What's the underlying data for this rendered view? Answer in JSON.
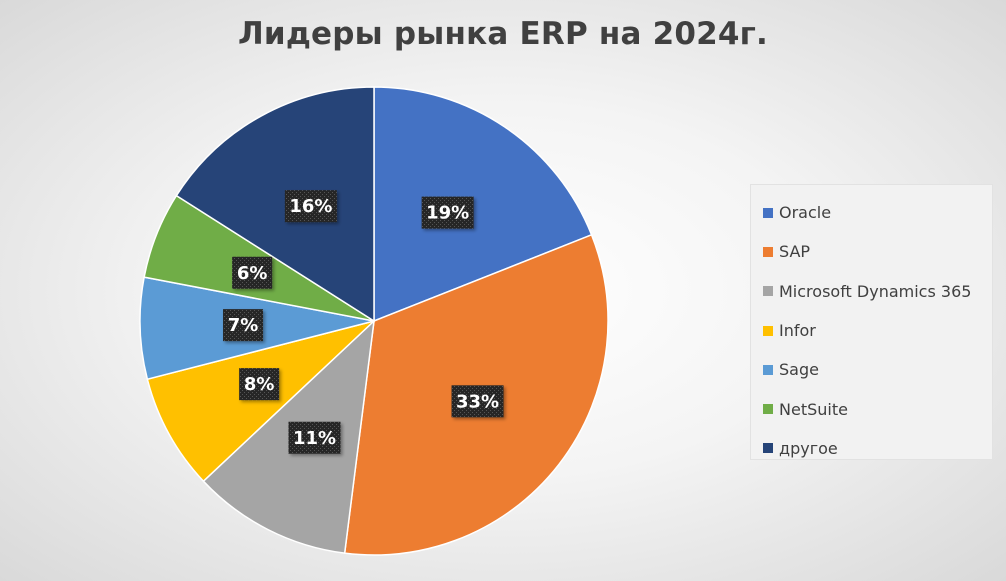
{
  "chart_data": {
    "type": "pie",
    "title": "Лидеры рынка ERP на 2024г.",
    "legend_position": "right",
    "start_angle_deg": 0,
    "slices": [
      {
        "label": "Oracle",
        "value": 19,
        "display": "19%",
        "color": "#4472c4"
      },
      {
        "label": "SAP",
        "value": 33,
        "display": "33%",
        "color": "#ed7d31"
      },
      {
        "label": "Microsoft Dynamics 365",
        "value": 11,
        "display": "11%",
        "color": "#a5a5a5"
      },
      {
        "label": "Infor",
        "value": 8,
        "display": "8%",
        "color": "#ffc000"
      },
      {
        "label": "Sage",
        "value": 7,
        "display": "7%",
        "color": "#5b9bd5"
      },
      {
        "label": "NetSuite",
        "value": 6,
        "display": "6%",
        "color": "#70ad47"
      },
      {
        "label": "другое",
        "value": 16,
        "display": "16%",
        "color": "#264478"
      }
    ]
  }
}
